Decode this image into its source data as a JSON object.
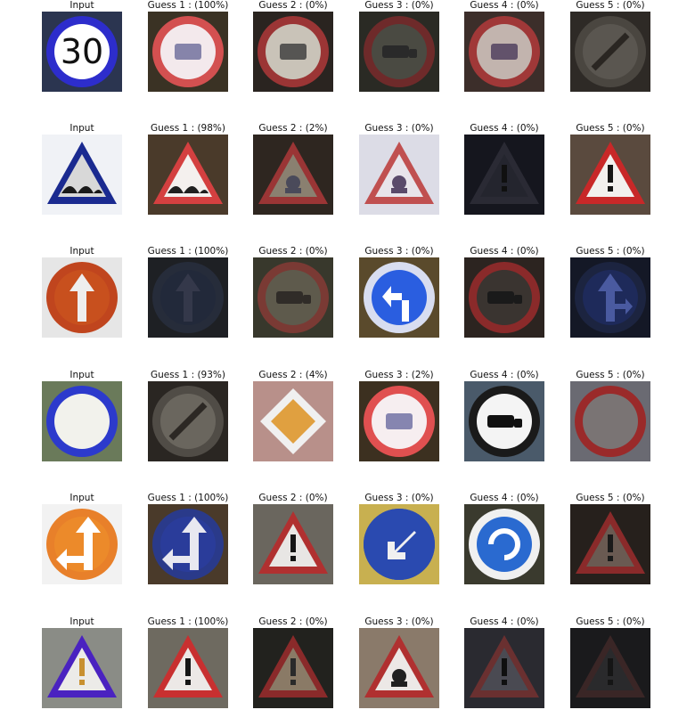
{
  "chart_data": {
    "type": "image-grid",
    "rows": [
      {
        "cells": [
          {
            "title": "Input",
            "icon": "speed-limit-30-sign-icon",
            "colors": {
              "bg": "#2b3550",
              "ring": "#2d2dcc",
              "fill": "#ffffff",
              "symbol": "#111111"
            }
          },
          {
            "title": "Guess 1 : (100%)",
            "icon": "speed-limit-sign-icon",
            "colors": {
              "bg": "#3a3224",
              "ring": "#d35050",
              "fill": "#f3e9ec",
              "symbol": "#6a6a9a"
            }
          },
          {
            "title": "Guess 2 : (0%)",
            "icon": "speed-limit-sign-icon",
            "colors": {
              "bg": "#2a2420",
              "ring": "#9b3535",
              "fill": "#c9c3b8",
              "symbol": "#3a3a3a"
            }
          },
          {
            "title": "Guess 3 : (0%)",
            "icon": "no-overtaking-sign-icon",
            "colors": {
              "bg": "#2a2a24",
              "ring": "#6e2a2a",
              "fill": "#4a4a42",
              "symbol": "#2a2a2a"
            }
          },
          {
            "title": "Guess 4 : (0%)",
            "icon": "speed-limit-sign-icon",
            "colors": {
              "bg": "#3c2e2a",
              "ring": "#a03838",
              "fill": "#c2b4ae",
              "symbol": "#4a3a5a"
            }
          },
          {
            "title": "Guess 5 : (0%)",
            "icon": "end-of-restriction-sign-icon",
            "colors": {
              "bg": "#2e2a26",
              "ring": "#4a4640",
              "fill": "#5a5650",
              "symbol": "#2a2622"
            }
          }
        ]
      },
      {
        "cells": [
          {
            "title": "Input",
            "icon": "bumpy-road-sign-icon",
            "colors": {
              "bg": "#f0f2f6",
              "ring": "#1a2a90",
              "fill": "#d8d8d8",
              "symbol": "#1a1a1a"
            }
          },
          {
            "title": "Guess 1 : (98%)",
            "icon": "bumpy-road-sign-icon",
            "colors": {
              "bg": "#4a3a2a",
              "ring": "#d44040",
              "fill": "#f4f0ee",
              "symbol": "#202020"
            }
          },
          {
            "title": "Guess 2 : (2%)",
            "icon": "slippery-road-sign-icon",
            "colors": {
              "bg": "#2e2620",
              "ring": "#9a3535",
              "fill": "#8a8070",
              "symbol": "#4a4a5a"
            }
          },
          {
            "title": "Guess 3 : (0%)",
            "icon": "road-work-sign-icon",
            "colors": {
              "bg": "#dcdce6",
              "ring": "#c05050",
              "fill": "#e8e4ea",
              "symbol": "#5a4a6a"
            }
          },
          {
            "title": "Guess 4 : (0%)",
            "icon": "warning-sign-icon",
            "colors": {
              "bg": "#15161e",
              "ring": "#2a2a34",
              "fill": "#24252e",
              "symbol": "#101010"
            }
          },
          {
            "title": "Guess 5 : (0%)",
            "icon": "general-caution-sign-icon",
            "colors": {
              "bg": "#5a4a3e",
              "ring": "#c82828",
              "fill": "#f2f0ee",
              "symbol": "#151515"
            }
          }
        ]
      },
      {
        "cells": [
          {
            "title": "Input",
            "icon": "ahead-only-sign-icon",
            "colors": {
              "bg": "#e6e6e6",
              "ring": "#c0451e",
              "fill": "#c8501e",
              "symbol": "#eeeeee"
            }
          },
          {
            "title": "Guess 1 : (100%)",
            "icon": "ahead-only-sign-icon",
            "colors": {
              "bg": "#1e2024",
              "ring": "#262c3a",
              "fill": "#22293a",
              "symbol": "#34384a"
            }
          },
          {
            "title": "Guess 2 : (0%)",
            "icon": "no-overtaking-sign-icon",
            "colors": {
              "bg": "#38382c",
              "ring": "#7a3a34",
              "fill": "#5e5a4c",
              "symbol": "#302c28"
            }
          },
          {
            "title": "Guess 3 : (0%)",
            "icon": "turn-left-ahead-sign-icon",
            "colors": {
              "bg": "#5a4a2c",
              "ring": "#d8ddf0",
              "fill": "#2a5ee0",
              "symbol": "#ffffff"
            }
          },
          {
            "title": "Guess 4 : (0%)",
            "icon": "no-trucks-sign-icon",
            "colors": {
              "bg": "#2c2420",
              "ring": "#8a2a2a",
              "fill": "#3a3430",
              "symbol": "#1a1a1a"
            }
          },
          {
            "title": "Guess 5 : (0%)",
            "icon": "go-straight-or-right-sign-icon",
            "colors": {
              "bg": "#141826",
              "ring": "#1c2440",
              "fill": "#1e2a5a",
              "symbol": "#4a5aa0"
            }
          }
        ]
      },
      {
        "cells": [
          {
            "title": "Input",
            "icon": "no-vehicles-sign-icon",
            "colors": {
              "bg": "#6a7a5a",
              "ring": "#2c3acc",
              "fill": "#f2f2ec",
              "symbol": "#f2f2ec"
            }
          },
          {
            "title": "Guess 1 : (93%)",
            "icon": "end-of-restriction-sign-icon",
            "colors": {
              "bg": "#2a2622",
              "ring": "#504c46",
              "fill": "#6a665e",
              "symbol": "#2c2824"
            }
          },
          {
            "title": "Guess 2 : (4%)",
            "icon": "priority-road-sign-icon",
            "colors": {
              "bg": "#b8908a",
              "ring": "#f0f0f0",
              "fill": "#e0a040",
              "symbol": "#f0f0f0"
            }
          },
          {
            "title": "Guess 3 : (2%)",
            "icon": "speed-limit-sign-icon",
            "colors": {
              "bg": "#3c3020",
              "ring": "#e05050",
              "fill": "#f6eef0",
              "symbol": "#6a6aa0"
            }
          },
          {
            "title": "Guess 4 : (0%)",
            "icon": "no-trucks-sign-icon",
            "colors": {
              "bg": "#4a5a6a",
              "ring": "#1a1a1a",
              "fill": "#f4f4f4",
              "symbol": "#111111"
            }
          },
          {
            "title": "Guess 5 : (0%)",
            "icon": "no-vehicles-sign-icon",
            "colors": {
              "bg": "#6a6a72",
              "ring": "#9a2a2a",
              "fill": "#7a7474",
              "symbol": "#7a7474"
            }
          }
        ]
      },
      {
        "cells": [
          {
            "title": "Input",
            "icon": "go-straight-or-left-sign-icon",
            "colors": {
              "bg": "#f2f2f2",
              "ring": "#e8802a",
              "fill": "#ec8a2a",
              "symbol": "#ffffff"
            }
          },
          {
            "title": "Guess 1 : (100%)",
            "icon": "go-straight-or-left-sign-icon",
            "colors": {
              "bg": "#4a3a2a",
              "ring": "#2a3a8a",
              "fill": "#2a3c9a",
              "symbol": "#e8e8f0"
            }
          },
          {
            "title": "Guess 2 : (0%)",
            "icon": "general-caution-sign-icon",
            "colors": {
              "bg": "#6a665e",
              "ring": "#b03030",
              "fill": "#e8e6e4",
              "symbol": "#151515"
            }
          },
          {
            "title": "Guess 3 : (0%)",
            "icon": "keep-left-sign-icon",
            "colors": {
              "bg": "#c8b050",
              "ring": "#2a4ab0",
              "fill": "#2a4ab0",
              "symbol": "#f0f0f0"
            }
          },
          {
            "title": "Guess 4 : (0%)",
            "icon": "roundabout-sign-icon",
            "colors": {
              "bg": "#3a3a2e",
              "ring": "#f0f0f0",
              "fill": "#2a6ad0",
              "symbol": "#ffffff"
            }
          },
          {
            "title": "Guess 5 : (0%)",
            "icon": "general-caution-sign-icon",
            "colors": {
              "bg": "#26201c",
              "ring": "#8a2a2a",
              "fill": "#6a5a52",
              "symbol": "#1a1a1a"
            }
          }
        ]
      },
      {
        "cells": [
          {
            "title": "Input",
            "icon": "general-caution-sign-icon",
            "colors": {
              "bg": "#8a8c86",
              "ring": "#4a22c0",
              "fill": "#ecebe8",
              "symbol": "#c89030"
            }
          },
          {
            "title": "Guess 1 : (100%)",
            "icon": "general-caution-sign-icon",
            "colors": {
              "bg": "#6e6a60",
              "ring": "#c83030",
              "fill": "#ece8e6",
              "symbol": "#151515"
            }
          },
          {
            "title": "Guess 2 : (0%)",
            "icon": "general-caution-sign-icon",
            "colors": {
              "bg": "#22221e",
              "ring": "#8a2a2a",
              "fill": "#8a7a66",
              "symbol": "#2a2a2a"
            }
          },
          {
            "title": "Guess 3 : (0%)",
            "icon": "pedestrians-sign-icon",
            "colors": {
              "bg": "#8a7a6a",
              "ring": "#b03030",
              "fill": "#ece8e6",
              "symbol": "#202020"
            }
          },
          {
            "title": "Guess 4 : (0%)",
            "icon": "warning-sign-icon",
            "colors": {
              "bg": "#2a2a30",
              "ring": "#6a3030",
              "fill": "#4a4a52",
              "symbol": "#101010"
            }
          },
          {
            "title": "Guess 5 : (0%)",
            "icon": "general-caution-sign-icon",
            "colors": {
              "bg": "#1a1a1c",
              "ring": "#3a2626",
              "fill": "#2a2a2c",
              "symbol": "#151515"
            }
          }
        ]
      }
    ],
    "symbol_text": {
      "speed_limit_30": "30"
    }
  }
}
